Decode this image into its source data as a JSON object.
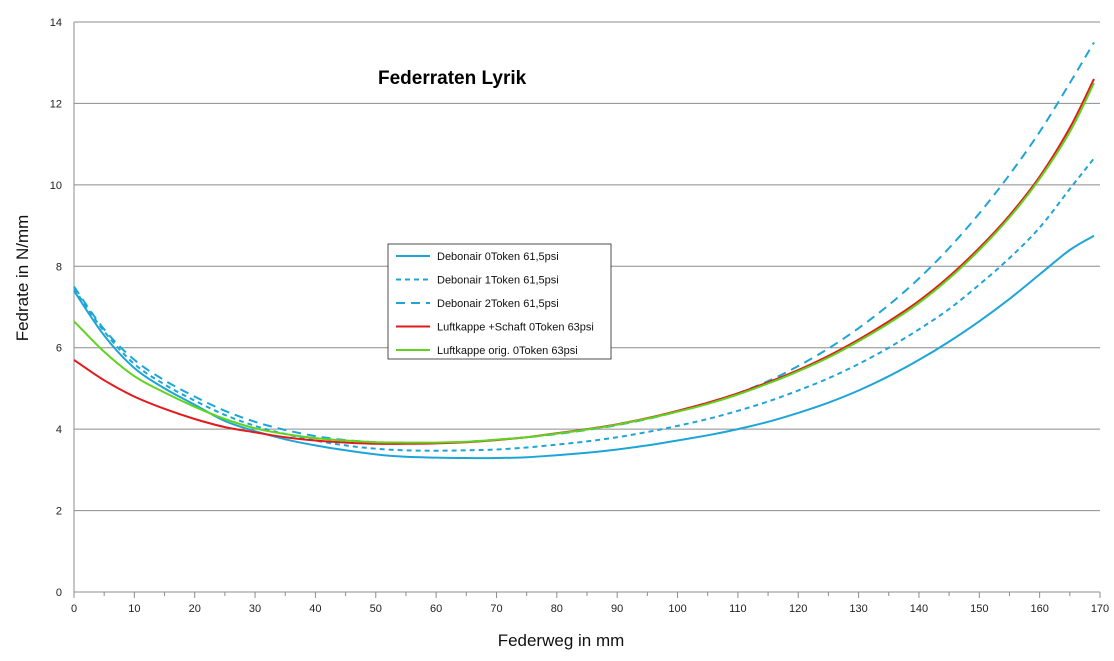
{
  "chart_data": {
    "type": "line",
    "title": "Federraten Lyrik",
    "xlabel": "Federweg in mm",
    "ylabel": "Fedrate in N/mm",
    "xlim": [
      0,
      170
    ],
    "ylim": [
      0,
      14
    ],
    "xticks": [
      0,
      10,
      20,
      30,
      40,
      50,
      60,
      70,
      80,
      90,
      100,
      110,
      120,
      130,
      140,
      150,
      160,
      170
    ],
    "yticks": [
      0,
      2,
      4,
      6,
      8,
      10,
      12,
      14
    ],
    "grid": "horizontal",
    "legend_position": "center-left",
    "series": [
      {
        "name": "Debonair 0Token 61,5psi",
        "color": "#1ea5d8",
        "dash": "solid",
        "x": [
          0,
          5,
          10,
          15,
          20,
          25,
          30,
          35,
          40,
          45,
          50,
          55,
          60,
          65,
          70,
          75,
          80,
          85,
          90,
          95,
          100,
          105,
          110,
          115,
          120,
          125,
          130,
          135,
          140,
          145,
          150,
          155,
          160,
          165,
          169
        ],
        "y": [
          7.4,
          6.3,
          5.5,
          5.0,
          4.6,
          4.2,
          3.95,
          3.75,
          3.6,
          3.48,
          3.38,
          3.32,
          3.3,
          3.29,
          3.29,
          3.31,
          3.36,
          3.42,
          3.5,
          3.6,
          3.72,
          3.85,
          4.0,
          4.18,
          4.4,
          4.65,
          4.95,
          5.3,
          5.7,
          6.15,
          6.65,
          7.2,
          7.8,
          8.4,
          8.75
        ]
      },
      {
        "name": "Debonair 1Token 61,5psi",
        "color": "#1ea5d8",
        "dash": "short",
        "x": [
          0,
          5,
          10,
          15,
          20,
          25,
          30,
          35,
          40,
          45,
          50,
          55,
          60,
          65,
          70,
          75,
          80,
          85,
          90,
          95,
          100,
          105,
          110,
          115,
          120,
          125,
          130,
          135,
          140,
          145,
          150,
          155,
          160,
          165,
          169
        ],
        "y": [
          7.45,
          6.4,
          5.6,
          5.1,
          4.7,
          4.35,
          4.08,
          3.88,
          3.72,
          3.6,
          3.52,
          3.48,
          3.47,
          3.48,
          3.5,
          3.55,
          3.62,
          3.7,
          3.8,
          3.93,
          4.08,
          4.25,
          4.45,
          4.68,
          4.95,
          5.25,
          5.6,
          6.0,
          6.45,
          6.95,
          7.55,
          8.2,
          8.95,
          9.9,
          10.65
        ]
      },
      {
        "name": "Debonair 2Token 61,5psi",
        "color": "#1ea5d8",
        "dash": "long",
        "x": [
          0,
          5,
          10,
          15,
          20,
          25,
          30,
          35,
          40,
          45,
          50,
          55,
          60,
          65,
          70,
          75,
          80,
          85,
          90,
          95,
          100,
          105,
          110,
          115,
          120,
          125,
          130,
          135,
          140,
          145,
          150,
          155,
          160,
          165,
          169
        ],
        "y": [
          7.5,
          6.45,
          5.7,
          5.2,
          4.8,
          4.45,
          4.18,
          3.98,
          3.83,
          3.73,
          3.68,
          3.66,
          3.66,
          3.69,
          3.74,
          3.8,
          3.88,
          3.98,
          4.1,
          4.25,
          4.43,
          4.63,
          4.88,
          5.18,
          5.55,
          5.98,
          6.48,
          7.05,
          7.7,
          8.45,
          9.3,
          10.25,
          11.3,
          12.5,
          13.5
        ]
      },
      {
        "name": "Luftkappe +Schaft 0Token 63psi",
        "color": "#e31a1c",
        "dash": "solid",
        "x": [
          0,
          5,
          10,
          15,
          20,
          25,
          30,
          35,
          40,
          45,
          50,
          55,
          60,
          65,
          70,
          75,
          80,
          85,
          90,
          95,
          100,
          105,
          110,
          115,
          120,
          125,
          130,
          135,
          140,
          145,
          150,
          155,
          160,
          165,
          169
        ],
        "y": [
          5.7,
          5.2,
          4.8,
          4.5,
          4.25,
          4.05,
          3.92,
          3.8,
          3.72,
          3.67,
          3.64,
          3.64,
          3.65,
          3.68,
          3.73,
          3.8,
          3.9,
          4.0,
          4.12,
          4.27,
          4.45,
          4.65,
          4.88,
          5.15,
          5.45,
          5.8,
          6.2,
          6.65,
          7.15,
          7.75,
          8.45,
          9.25,
          10.2,
          11.4,
          12.6
        ]
      },
      {
        "name": "Luftkappe orig. 0Token 63psi",
        "color": "#5fd31f",
        "dash": "solid",
        "x": [
          0,
          5,
          10,
          15,
          20,
          25,
          30,
          35,
          40,
          45,
          50,
          55,
          60,
          65,
          70,
          75,
          80,
          85,
          90,
          95,
          100,
          105,
          110,
          115,
          120,
          125,
          130,
          135,
          140,
          145,
          150,
          155,
          160,
          165,
          169
        ],
        "y": [
          6.65,
          5.9,
          5.3,
          4.9,
          4.55,
          4.25,
          4.02,
          3.88,
          3.78,
          3.72,
          3.68,
          3.67,
          3.67,
          3.69,
          3.74,
          3.8,
          3.89,
          3.99,
          4.11,
          4.26,
          4.43,
          4.62,
          4.85,
          5.12,
          5.42,
          5.76,
          6.16,
          6.6,
          7.1,
          7.7,
          8.4,
          9.2,
          10.15,
          11.3,
          12.5
        ]
      }
    ]
  }
}
